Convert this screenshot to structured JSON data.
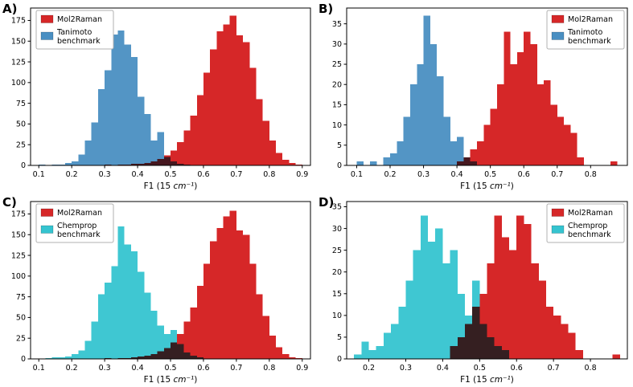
{
  "figure_title": "",
  "xlabel": {
    "prefix": "F1 (15 ",
    "unit": "cm⁻¹",
    "suffix": ")"
  },
  "colors": {
    "mol2raman_red": "#d62728",
    "tanimoto_blue": "#4a8fc2",
    "chemprop_cyan": "#35c4d0",
    "legend_border": "#b0b0b0",
    "axis": "#000000"
  },
  "chart_data": [
    {
      "type": "histogram",
      "letter": "A)",
      "xlabel": "F1 (15 cm⁻¹)",
      "legend_position": "upper left",
      "xlim": [
        0.075,
        0.925
      ],
      "ylim": [
        0,
        190
      ],
      "yticks": [
        0,
        25,
        50,
        75,
        100,
        125,
        150,
        175
      ],
      "xticks": [
        0.1,
        0.2,
        0.3,
        0.4,
        0.5,
        0.6,
        0.7,
        0.8,
        0.9
      ],
      "series": [
        {
          "name": "Mol2Raman",
          "legend_lines": [
            "Mol2Raman"
          ],
          "color": "#d62728",
          "bin_start": 0.3,
          "bin_width": 0.02,
          "counts": [
            1,
            0,
            1,
            1,
            2,
            2,
            3,
            5,
            8,
            12,
            18,
            28,
            42,
            60,
            85,
            112,
            140,
            162,
            170,
            181,
            157,
            149,
            118,
            80,
            54,
            30,
            15,
            7,
            3,
            1
          ]
        },
        {
          "name": "Tanimoto benchmark",
          "legend_lines": [
            "Tanimoto",
            "benchmark"
          ],
          "color": "#4a8fc2",
          "overlap_blend": true,
          "bin_start": 0.1,
          "bin_width": 0.02,
          "counts": [
            1,
            0,
            1,
            1,
            3,
            5,
            13,
            30,
            52,
            92,
            115,
            158,
            163,
            146,
            131,
            83,
            62,
            30,
            40,
            10,
            5,
            2,
            1
          ]
        }
      ]
    },
    {
      "type": "histogram",
      "letter": "B)",
      "xlabel": "F1 (15 cm⁻¹)",
      "legend_position": "upper right",
      "xlim": [
        0.07,
        0.91
      ],
      "ylim": [
        0,
        38.9
      ],
      "yticks": [
        0,
        5,
        10,
        15,
        20,
        25,
        30,
        35
      ],
      "xticks": [
        0.1,
        0.2,
        0.3,
        0.4,
        0.5,
        0.6,
        0.7,
        0.8
      ],
      "series": [
        {
          "name": "Mol2Raman",
          "legend_lines": [
            "Mol2Raman"
          ],
          "color": "#d62728",
          "bin_start": 0.4,
          "bin_width": 0.02,
          "counts": [
            1,
            2,
            4,
            6,
            10,
            14,
            20,
            33,
            25,
            28,
            33,
            30,
            20,
            21,
            15,
            12,
            10,
            8,
            2,
            0,
            0,
            0,
            0,
            1
          ]
        },
        {
          "name": "Tanimoto benchmark",
          "legend_lines": [
            "Tanimoto",
            "benchmark"
          ],
          "color": "#4a8fc2",
          "overlap_blend": true,
          "bin_start": 0.1,
          "bin_width": 0.02,
          "counts": [
            1,
            0,
            1,
            0,
            2,
            3,
            6,
            12,
            20,
            25,
            37,
            30,
            22,
            12,
            6,
            7,
            2,
            1
          ]
        }
      ]
    },
    {
      "type": "histogram",
      "letter": "C)",
      "xlabel": "F1 (15 cm⁻¹)",
      "legend_position": "upper left",
      "xlim": [
        0.075,
        0.925
      ],
      "ylim": [
        0,
        190
      ],
      "yticks": [
        0,
        25,
        50,
        75,
        100,
        125,
        150,
        175
      ],
      "xticks": [
        0.1,
        0.2,
        0.3,
        0.4,
        0.5,
        0.6,
        0.7,
        0.8,
        0.9
      ],
      "series": [
        {
          "name": "Mol2Raman",
          "legend_lines": [
            "Mol2Raman"
          ],
          "color": "#d62728",
          "bin_start": 0.3,
          "bin_width": 0.02,
          "counts": [
            1,
            0,
            1,
            1,
            2,
            3,
            4,
            6,
            9,
            13,
            20,
            30,
            45,
            62,
            88,
            115,
            142,
            158,
            172,
            179,
            155,
            150,
            115,
            78,
            52,
            28,
            14,
            6,
            2,
            1
          ]
        },
        {
          "name": "Chemprop benchmark",
          "legend_lines": [
            "Chemprop",
            "benchmark"
          ],
          "color": "#35c4d0",
          "overlap_blend": true,
          "bin_start": 0.12,
          "bin_width": 0.02,
          "counts": [
            1,
            2,
            2,
            3,
            6,
            10,
            22,
            45,
            78,
            92,
            112,
            160,
            138,
            130,
            105,
            80,
            58,
            40,
            30,
            35,
            18,
            8,
            4,
            2
          ]
        }
      ]
    },
    {
      "type": "histogram",
      "letter": "D)",
      "xlabel": "F1 (15 cm⁻¹)",
      "legend_position": "upper right",
      "xlim": [
        0.14,
        0.9
      ],
      "ylim": [
        0,
        36.2
      ],
      "yticks": [
        0,
        5,
        10,
        15,
        20,
        25,
        30,
        35
      ],
      "xticks": [
        0.2,
        0.3,
        0.4,
        0.5,
        0.6,
        0.7,
        0.8
      ],
      "series": [
        {
          "name": "Mol2Raman",
          "legend_lines": [
            "Mol2Raman"
          ],
          "color": "#d62728",
          "bin_start": 0.42,
          "bin_width": 0.02,
          "counts": [
            3,
            5,
            8,
            12,
            15,
            22,
            33,
            28,
            25,
            33,
            31,
            22,
            18,
            12,
            10,
            8,
            6,
            2,
            0,
            0,
            0,
            0,
            1
          ]
        },
        {
          "name": "Chemprop benchmark",
          "legend_lines": [
            "Chemprop",
            "benchmark"
          ],
          "color": "#35c4d0",
          "overlap_blend": true,
          "bin_start": 0.16,
          "bin_width": 0.02,
          "counts": [
            1,
            4,
            2,
            3,
            6,
            8,
            12,
            18,
            25,
            33,
            27,
            30,
            22,
            25,
            15,
            10,
            18,
            8,
            5,
            3,
            2
          ]
        }
      ]
    }
  ]
}
